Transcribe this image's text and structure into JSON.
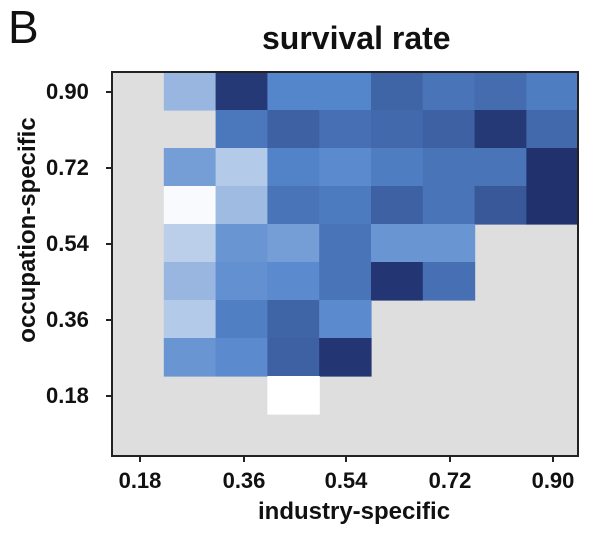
{
  "panel": {
    "label": "B"
  },
  "chart_data": {
    "type": "heatmap",
    "title": "survival rate",
    "xlabel": "industry-specific",
    "ylabel": "occupation-specific",
    "x_ticks": [
      "0.18",
      "0.36",
      "0.54",
      "0.72",
      "0.90"
    ],
    "y_ticks": [
      "0.90",
      "0.72",
      "0.54",
      "0.36",
      "0.18"
    ],
    "n_cols": 9,
    "n_rows": 9,
    "colorscale": {
      "low": "#ffffff",
      "high": "#1c2a66",
      "missing": "#dedede"
    },
    "rows_top_to_bottom": [
      [
        null,
        0.3,
        0.92,
        0.5,
        0.5,
        0.68,
        0.6,
        0.64,
        0.55
      ],
      [
        null,
        null,
        0.58,
        0.7,
        0.62,
        0.66,
        0.7,
        0.92,
        0.66
      ],
      [
        null,
        0.4,
        0.22,
        0.52,
        0.48,
        0.55,
        0.6,
        0.6,
        0.96
      ],
      [
        null,
        0.02,
        0.28,
        0.6,
        0.56,
        0.7,
        0.6,
        0.75,
        0.96
      ],
      [
        null,
        0.2,
        0.44,
        0.4,
        0.6,
        0.44,
        0.44,
        null,
        null
      ],
      [
        null,
        0.3,
        0.46,
        0.48,
        0.6,
        0.94,
        0.62,
        null,
        null
      ],
      [
        null,
        0.22,
        0.54,
        0.68,
        0.48,
        null,
        null,
        null,
        null
      ],
      [
        null,
        0.44,
        0.48,
        0.7,
        0.94,
        null,
        null,
        null,
        null
      ],
      [
        null,
        null,
        null,
        0.0,
        null,
        null,
        null,
        null,
        null
      ]
    ]
  }
}
